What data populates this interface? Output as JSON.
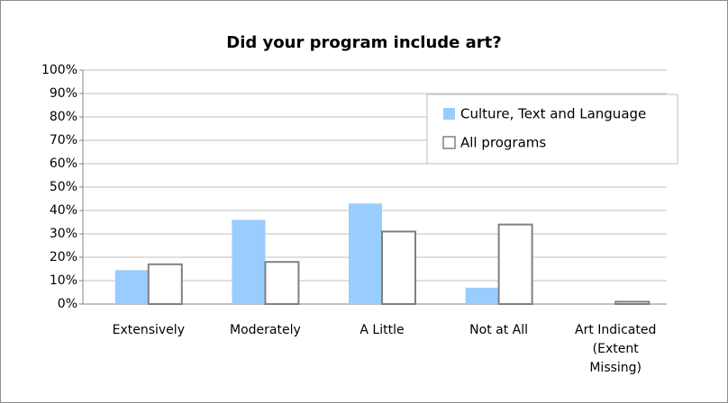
{
  "chart_data": {
    "type": "bar",
    "title": "Did your program include art?",
    "categories": [
      "Extensively",
      "Moderately",
      "A Little",
      "Not at All",
      "Art Indicated (Extent Missing)"
    ],
    "series": [
      {
        "name": "Culture, Text and Language",
        "color": "#99ccff",
        "values": [
          14.5,
          36,
          43,
          7,
          0
        ]
      },
      {
        "name": "All programs",
        "color": "#ffffff",
        "values": [
          17,
          18,
          31,
          34,
          1
        ]
      }
    ],
    "ylim": [
      0,
      100
    ],
    "yticks": [
      {
        "value": 0,
        "label": "0%"
      },
      {
        "value": 10,
        "label": "10%"
      },
      {
        "value": 20,
        "label": "20%"
      },
      {
        "value": 30,
        "label": "30%"
      },
      {
        "value": 40,
        "label": "40%"
      },
      {
        "value": 50,
        "label": "50%"
      },
      {
        "value": 60,
        "label": "60%"
      },
      {
        "value": 70,
        "label": "70%"
      },
      {
        "value": 80,
        "label": "80%"
      },
      {
        "value": 90,
        "label": "90%"
      },
      {
        "value": 100,
        "label": "100%"
      }
    ],
    "grid": true,
    "legend": "upper right"
  }
}
